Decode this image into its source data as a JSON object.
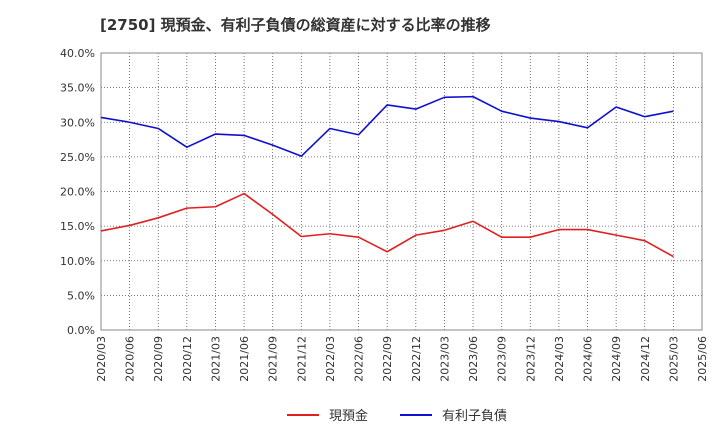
{
  "chart_data": {
    "type": "line",
    "title": "[2750]  現預金、有利子負債の総資産に対する比率の推移",
    "xlabel": "",
    "ylabel": "",
    "ylim": [
      0,
      40
    ],
    "yticks": [
      "0.0%",
      "5.0%",
      "10.0%",
      "15.0%",
      "20.0%",
      "25.0%",
      "30.0%",
      "35.0%",
      "40.0%"
    ],
    "categories": [
      "2020/03",
      "2020/06",
      "2020/09",
      "2020/12",
      "2021/03",
      "2021/06",
      "2021/09",
      "2021/12",
      "2022/03",
      "2022/06",
      "2022/09",
      "2022/12",
      "2023/03",
      "2023/06",
      "2023/09",
      "2023/12",
      "2024/03",
      "2024/06",
      "2024/09",
      "2024/12",
      "2025/03",
      "2025/06"
    ],
    "series": [
      {
        "name": "現預金",
        "color": "#e02020",
        "values": [
          14.3,
          15.1,
          16.2,
          17.6,
          17.8,
          19.7,
          16.7,
          13.5,
          13.9,
          13.4,
          11.3,
          13.7,
          14.4,
          15.7,
          13.4,
          13.4,
          14.5,
          14.5,
          13.7,
          12.9,
          10.6,
          null
        ]
      },
      {
        "name": "有利子負債",
        "color": "#1010d0",
        "values": [
          30.7,
          30.0,
          29.1,
          26.4,
          28.3,
          28.1,
          26.7,
          25.1,
          29.1,
          28.2,
          32.5,
          31.9,
          33.6,
          33.7,
          31.6,
          30.6,
          30.1,
          29.2,
          32.2,
          30.8,
          31.6,
          null
        ]
      }
    ],
    "grid": true,
    "legend_position": "bottom-center"
  }
}
